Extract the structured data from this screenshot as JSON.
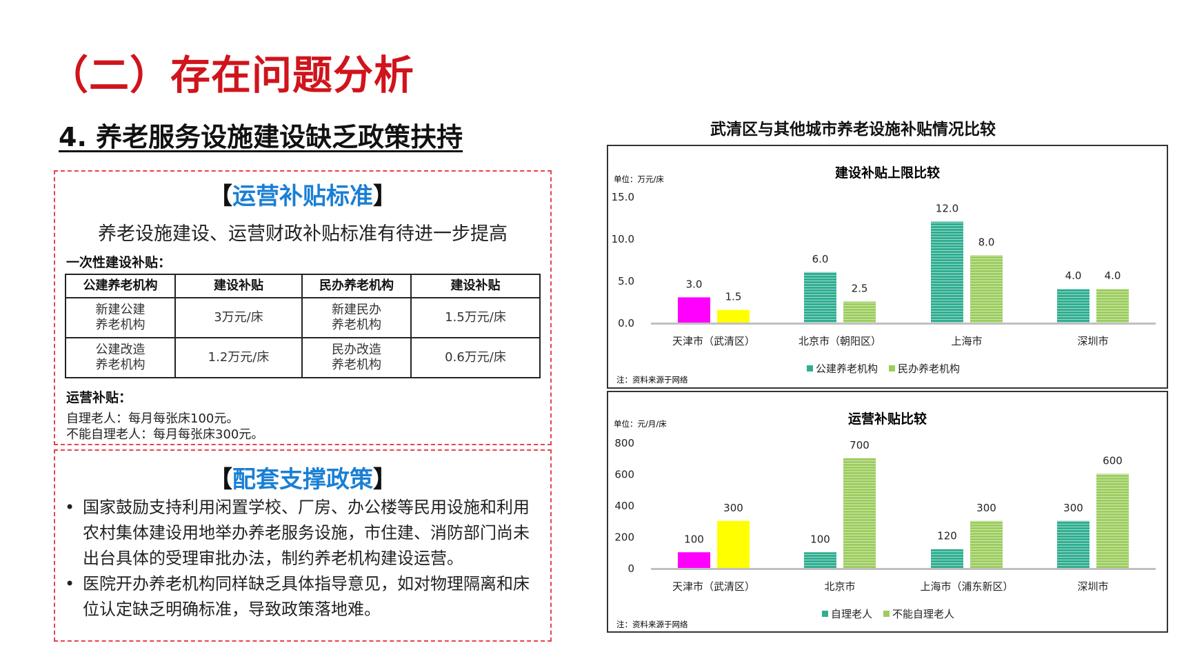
{
  "main_title": "（二）存在问题分析",
  "section_title": "4. 养老服务设施建设缺乏政策扶持",
  "standard_box": {
    "heading_open": "【",
    "heading": "运营补贴标准",
    "heading_close": "】",
    "subline": "养老设施建设、运营财政补贴标准有待进一步提高",
    "one_time_label": "一次性建设补贴：",
    "table": {
      "headers": [
        "公建养老机构",
        "建设补贴",
        "民办养老机构",
        "建设补贴"
      ],
      "rows": [
        [
          "新建公建\n养老机构",
          "3万元/床",
          "新建民办\n养老机构",
          "1.5万元/床"
        ],
        [
          "公建改造\n养老机构",
          "1.2万元/床",
          "民办改造\n养老机构",
          "0.6万元/床"
        ]
      ]
    },
    "operation_label": "运营补贴：",
    "operation_lines": [
      "自理老人：每月每张床100元。",
      "不能自理老人：每月每张床300元。"
    ]
  },
  "policy_box": {
    "heading_open": "【",
    "heading": "配套支撑政策",
    "heading_close": "】",
    "bullet_symbol": "•",
    "bullets": [
      "国家鼓励支持利用闲置学校、厂房、办公楼等民用设施和利用农村集体建设用地举办养老服务设施，市住建、消防部门尚未出台具体的受理审批办法，制约养老机构建设运营。",
      "医院开办养老机构同样缺乏具体指导意见，如对物理隔离和床位认定缺乏明确标准，导致政策落地难。"
    ]
  },
  "chart_super_title": "武清区与其他城市养老设施补贴情况比较",
  "chart_data": [
    {
      "type": "bar",
      "title": "建设补贴上限比较",
      "unit_label": "单位：万元/床",
      "note": "注：资料来源于网络",
      "categories": [
        "天津市（武清区）",
        "北京市（朝阳区）",
        "上海市",
        "深圳市"
      ],
      "series": [
        {
          "name": "公建养老机构",
          "values": [
            3.0,
            6.0,
            12.0,
            4.0
          ]
        },
        {
          "name": "民办养老机构",
          "values": [
            1.5,
            2.5,
            8.0,
            4.0
          ]
        }
      ],
      "data_labels": [
        [
          "3.0",
          "6.0",
          "12.0",
          "4.0"
        ],
        [
          "1.5",
          "2.5",
          "8.0",
          "4.0"
        ]
      ],
      "yticks": [
        "0.0",
        "5.0",
        "10.0",
        "15.0"
      ],
      "ylim": [
        0,
        15
      ],
      "legend": "bottom",
      "highlight_colors": [
        "#ff00ff",
        "#ffff00"
      ],
      "series_colors": [
        "#2fae90",
        "#9ccd5e"
      ]
    },
    {
      "type": "bar",
      "title": "运营补贴比较",
      "unit_label": "单位：元/月/床",
      "note": "注：资料来源于网络",
      "categories": [
        "天津市（武清区）",
        "北京市",
        "上海市（浦东新区）",
        "深圳市"
      ],
      "series": [
        {
          "name": "自理老人",
          "values": [
            100,
            100,
            120,
            300
          ]
        },
        {
          "name": "不能自理老人",
          "values": [
            300,
            700,
            300,
            600
          ]
        }
      ],
      "data_labels": [
        [
          "100",
          "100",
          "120",
          "300"
        ],
        [
          "300",
          "700",
          "300",
          "600"
        ]
      ],
      "yticks": [
        "0",
        "200",
        "400",
        "600",
        "800"
      ],
      "ylim": [
        0,
        800
      ],
      "legend": "bottom",
      "highlight_colors": [
        "#ff00ff",
        "#ffff00"
      ],
      "series_colors": [
        "#2fae90",
        "#9ccd5e"
      ]
    }
  ]
}
